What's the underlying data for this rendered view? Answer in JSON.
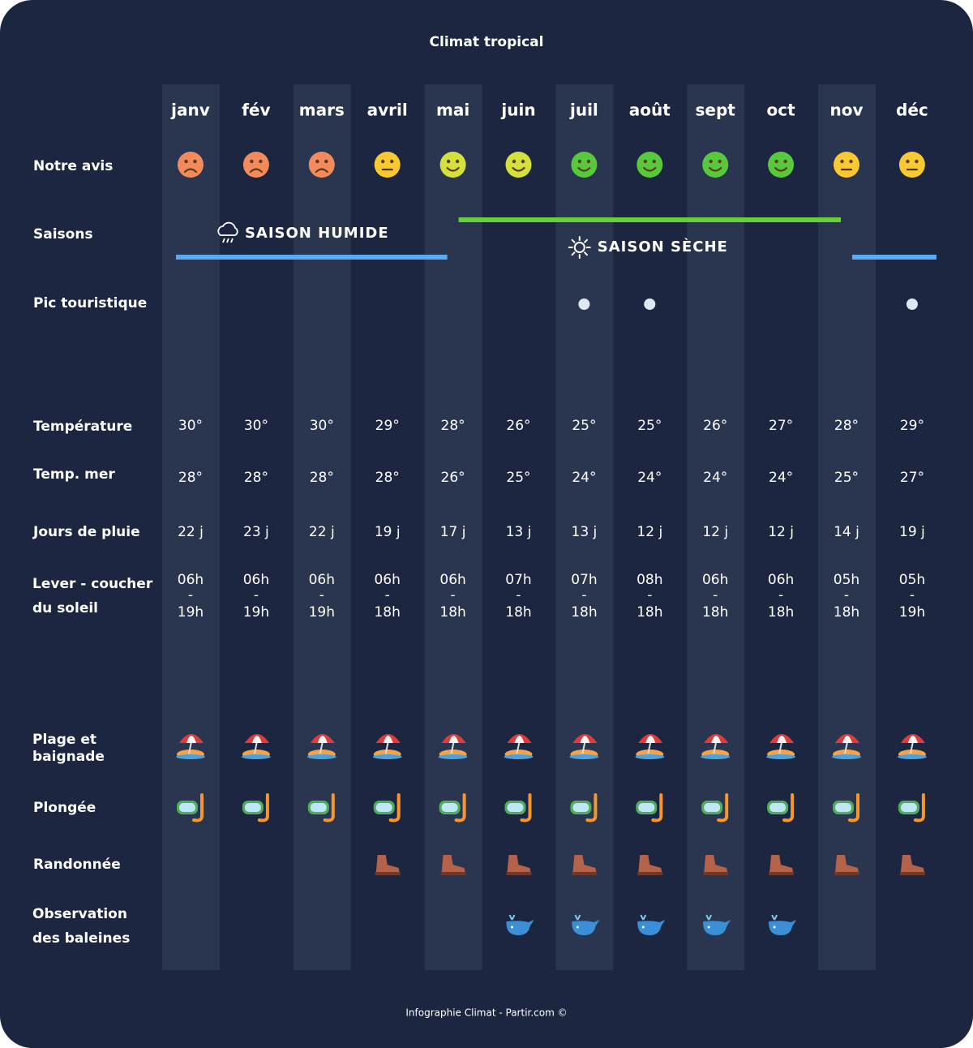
{
  "title": "Climat tropical",
  "months": [
    "janv",
    "fév",
    "mars",
    "avril",
    "mai",
    "juin",
    "juil",
    "août",
    "sept",
    "oct",
    "nov",
    "déc"
  ],
  "labels": {
    "avis": "Notre avis",
    "saisons": "Saisons",
    "pic": "Pic touristique",
    "temperature": "Température",
    "mer": "Temp. mer",
    "pluie": "Jours de pluie",
    "soleil": [
      "Lever - coucher",
      "du soleil"
    ],
    "plage": [
      "Plage et",
      "baignade"
    ],
    "plongee": "Plongée",
    "randonnee": "Randonnée",
    "baleines": [
      "Observation",
      "des baleines"
    ]
  },
  "avis": [
    {
      "color": "#f28a5c",
      "mouth": "frown"
    },
    {
      "color": "#f28a5c",
      "mouth": "frown"
    },
    {
      "color": "#f28a5c",
      "mouth": "frown"
    },
    {
      "color": "#f9c932",
      "mouth": "neutral"
    },
    {
      "color": "#d4e13c",
      "mouth": "smile"
    },
    {
      "color": "#d4e13c",
      "mouth": "smile"
    },
    {
      "color": "#58c93b",
      "mouth": "smile"
    },
    {
      "color": "#58c93b",
      "mouth": "smile"
    },
    {
      "color": "#58c93b",
      "mouth": "smile"
    },
    {
      "color": "#58c93b",
      "mouth": "smile"
    },
    {
      "color": "#f9c932",
      "mouth": "neutral"
    },
    {
      "color": "#f9c932",
      "mouth": "neutral"
    }
  ],
  "seasons": [
    {
      "label": "SAISON HUMIDE",
      "color": "#5aa9f5",
      "icon": "rain",
      "spans": [
        [
          "janv",
          "mai"
        ],
        [
          "nov",
          "déc"
        ]
      ]
    },
    {
      "label": "SAISON SÈCHE",
      "color": "#66d13a",
      "icon": "sun",
      "spans": [
        [
          "mai",
          "nov"
        ]
      ]
    }
  ],
  "pic": [
    false,
    false,
    false,
    false,
    false,
    false,
    true,
    true,
    false,
    false,
    false,
    true
  ],
  "temperature": [
    "30°",
    "30°",
    "30°",
    "29°",
    "28°",
    "26°",
    "25°",
    "25°",
    "26°",
    "27°",
    "28°",
    "29°"
  ],
  "mer": [
    "28°",
    "28°",
    "28°",
    "28°",
    "26°",
    "25°",
    "24°",
    "24°",
    "24°",
    "24°",
    "25°",
    "27°"
  ],
  "pluie": [
    "22 j",
    "23 j",
    "22 j",
    "19 j",
    "17 j",
    "13 j",
    "13 j",
    "12 j",
    "12 j",
    "12 j",
    "14 j",
    "19 j"
  ],
  "lever": [
    "06h",
    "06h",
    "06h",
    "06h",
    "06h",
    "07h",
    "07h",
    "08h",
    "06h",
    "06h",
    "05h",
    "05h"
  ],
  "separator": "-",
  "coucher": [
    "19h",
    "19h",
    "19h",
    "18h",
    "18h",
    "18h",
    "18h",
    "18h",
    "18h",
    "18h",
    "18h",
    "19h"
  ],
  "plage": [
    true,
    true,
    true,
    true,
    true,
    true,
    true,
    true,
    true,
    true,
    true,
    true
  ],
  "plongee": [
    true,
    true,
    true,
    true,
    true,
    true,
    true,
    true,
    true,
    true,
    true,
    true
  ],
  "randonnee": [
    false,
    false,
    false,
    true,
    true,
    true,
    true,
    true,
    true,
    true,
    true,
    true
  ],
  "baleines": [
    false,
    false,
    false,
    false,
    false,
    true,
    true,
    true,
    true,
    true,
    false,
    false
  ],
  "footer": "Infographie Climat - Partir.com ©"
}
